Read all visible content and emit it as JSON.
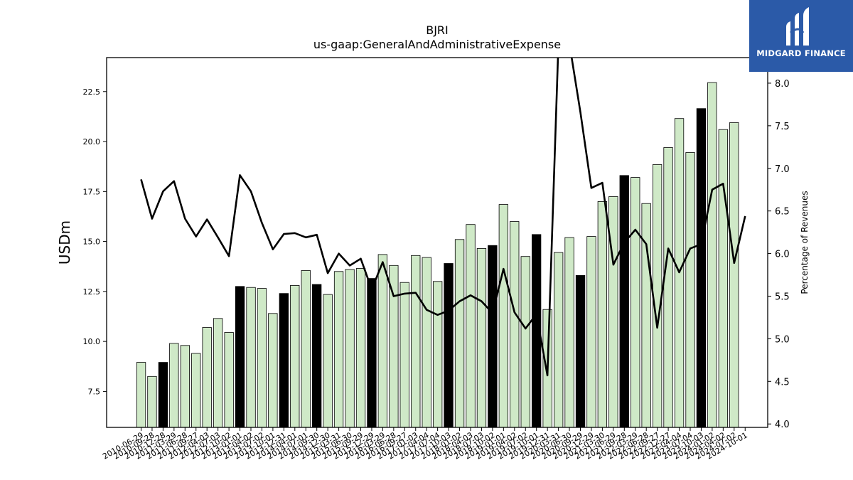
{
  "logo": {
    "text": "MIDGARD FINANCE",
    "icon": "midgard-logo-icon",
    "background": "#2b5aa8"
  },
  "chart_data": {
    "type": "bar",
    "title": "BJRI",
    "subtitle": "us-gaap:GeneralAndAdministrativeExpense",
    "ylabel": "USDm",
    "y2label": "Percentage of Revenues",
    "ylim": [
      5.7,
      24.2
    ],
    "y2lim": [
      3.96,
      8.3
    ],
    "yticks": [
      "7.5",
      "10.0",
      "12.5",
      "15.0",
      "17.5",
      "20.0",
      "22.5"
    ],
    "y2ticks": [
      "4.0",
      "4.5",
      "5.0",
      "5.5",
      "6.0",
      "6.5",
      "7.0",
      "7.5",
      "8.0"
    ],
    "colors": {
      "bar": "#cfe9c7",
      "bar_highlight": "#000000",
      "bar_edge": "#000000",
      "line": "#000000"
    },
    "categories": [
      "2010-06-29",
      "2010-09-28",
      "2010-12-28",
      "2011-03-29",
      "2011-06-28",
      "2011-09-27",
      "2012-04-03",
      "2012-07-03",
      "2012-10-02",
      "2013-01-01",
      "2013-04-02",
      "2013-07-02",
      "2013-10-01",
      "2013-12-31",
      "2014-04-01",
      "2014-07-01",
      "2014-09-30",
      "2014-12-30",
      "2015-03-31",
      "2015-06-30",
      "2015-09-29",
      "2015-12-29",
      "2016-03-29",
      "2016-06-28",
      "2016-09-27",
      "2017-01-03",
      "2017-04-04",
      "2017-07-04",
      "2017-10-03",
      "2018-01-02",
      "2018-04-03",
      "2018-07-03",
      "2018-10-02",
      "2019-01-01",
      "2019-04-02",
      "2019-07-02",
      "2019-10-01",
      "2019-12-31",
      "2020-03-31",
      "2020-06-30",
      "2020-09-29",
      "2020-12-29",
      "2021-03-30",
      "2021-06-29",
      "2021-09-28",
      "2022-03-29",
      "2022-06-28",
      "2022-09-27",
      "2022-12-27",
      "2023-04-04",
      "2023-07-04",
      "2023-10-03",
      "2024-01-02",
      "2024-04-02",
      "2024-07-02",
      "2024-10-01"
    ],
    "xticks_shown": [
      "2010-06-29",
      "2010-09-28",
      "2010-12-28",
      "2011-03-29",
      "2011-06-28",
      "2011-09-27",
      "2012-04-03",
      "2012-07-03",
      "2012-10-02",
      "2013-01-01",
      "2013-04-02",
      "2013-07-02",
      "2013-10-01",
      "2013-12-31",
      "2014-04-01",
      "2014-07-01",
      "2014-09-30",
      "2014-12-30",
      "2015-03-31",
      "2015-06-30",
      "2015-09-29",
      "2015-12-29",
      "2016-03-29",
      "2016-06-28",
      "2016-09-27",
      "2017-01-03",
      "2017-04-04",
      "2017-07-04",
      "2017-10-03",
      "2018-01-02",
      "2018-04-03",
      "2018-07-03",
      "2018-10-02",
      "2019-01-01",
      "2019-04-02",
      "2019-07-02",
      "2019-10-01",
      "2019-12-31",
      "2020-03-31",
      "2020-06-30",
      "2020-09-29",
      "2020-12-29",
      "2021-03-30",
      "2021-06-29",
      "2021-09-28",
      "2022-03-29",
      "2022-06-28",
      "2022-09-27",
      "2022-12-27",
      "2023-04-04",
      "2023-07-04",
      "2023-10-03",
      "2024-01-02",
      "2024-04-02",
      "2024-07-02",
      "2024-10-01"
    ],
    "series": [
      {
        "kind": "bar",
        "axis": "left",
        "values": [
          8.95,
          8.25,
          8.95,
          9.9,
          9.8,
          9.4,
          10.7,
          11.15,
          10.45,
          12.75,
          12.7,
          12.65,
          11.4,
          12.4,
          12.8,
          13.55,
          12.85,
          12.35,
          13.5,
          13.6,
          13.65,
          13.15,
          14.35,
          13.8,
          12.95,
          14.3,
          14.2,
          13.0,
          13.9,
          15.1,
          15.85,
          14.65,
          14.8,
          16.85,
          16.0,
          14.25,
          15.35,
          11.6,
          14.45,
          15.2,
          13.3,
          15.25,
          17.0,
          17.25,
          18.3,
          18.2,
          16.9,
          18.85,
          19.7,
          21.15,
          19.45,
          21.65,
          22.95,
          20.6,
          20.95,
          null
        ],
        "highlight": [
          false,
          false,
          true,
          false,
          false,
          false,
          false,
          false,
          false,
          true,
          false,
          false,
          false,
          true,
          false,
          false,
          true,
          false,
          false,
          false,
          false,
          true,
          false,
          false,
          false,
          false,
          false,
          false,
          true,
          false,
          false,
          false,
          true,
          false,
          false,
          false,
          true,
          false,
          false,
          false,
          true,
          false,
          false,
          false,
          true,
          false,
          false,
          false,
          false,
          false,
          false,
          true,
          false,
          false,
          false,
          false
        ]
      },
      {
        "kind": "line",
        "axis": "right",
        "values": [
          6.87,
          6.41,
          6.73,
          6.85,
          6.41,
          6.2,
          6.4,
          6.19,
          5.97,
          6.92,
          6.73,
          6.36,
          6.05,
          6.23,
          6.24,
          6.19,
          6.22,
          5.77,
          6.0,
          5.86,
          5.94,
          5.58,
          5.9,
          5.5,
          5.53,
          5.54,
          5.34,
          5.28,
          5.33,
          5.44,
          5.51,
          5.44,
          5.3,
          5.82,
          5.31,
          5.12,
          5.29,
          4.57,
          8.3,
          8.3,
          7.66,
          6.77,
          6.83,
          5.87,
          6.13,
          6.28,
          6.11,
          5.13,
          6.06,
          5.78,
          6.06,
          6.11,
          6.75,
          6.82,
          5.89,
          6.44
        ],
        "note_values_above_range": "clipped at top of axis"
      }
    ]
  }
}
